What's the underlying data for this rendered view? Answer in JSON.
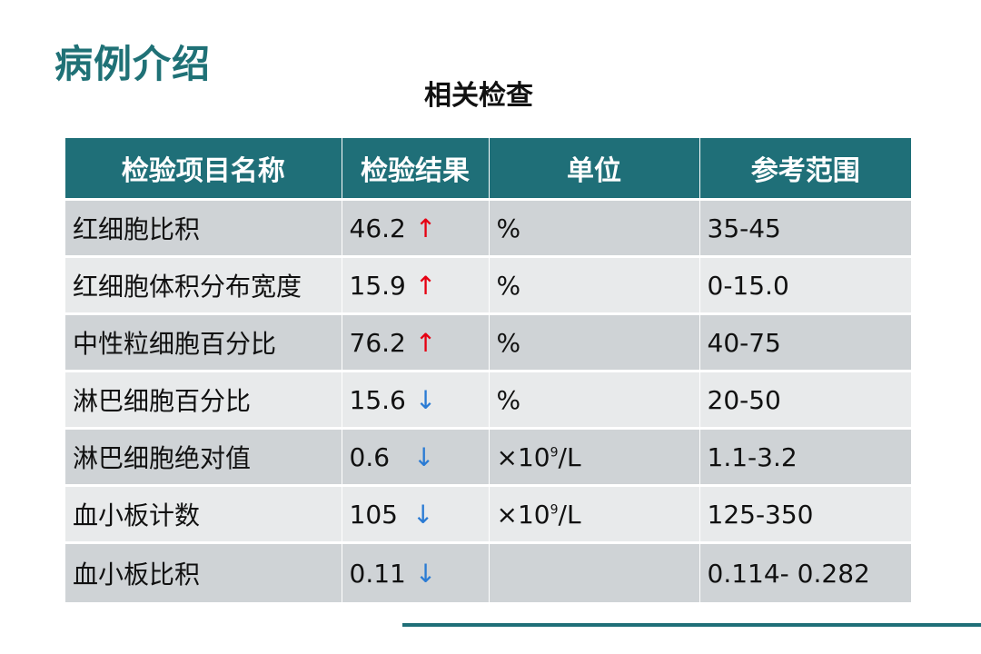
{
  "slide": {
    "title": "病例介绍",
    "caption": "相关检查"
  },
  "table": {
    "headers": [
      "检验项目名称",
      "检验结果",
      "单位",
      "参考范围"
    ],
    "rows": [
      {
        "name": "红细胞比积",
        "result": "46.2",
        "flag": "↑",
        "flag_dir": "up",
        "unit_base": "%",
        "unit_sup": "",
        "unit_tail": "",
        "range": "35-45"
      },
      {
        "name": "红细胞体积分布宽度",
        "result": "15.9",
        "flag": "↑",
        "flag_dir": "up",
        "unit_base": "%",
        "unit_sup": "",
        "unit_tail": "",
        "range": "0-15.0"
      },
      {
        "name": "中性粒细胞百分比",
        "result": "76.2",
        "flag": "↑",
        "flag_dir": "up",
        "unit_base": "%",
        "unit_sup": "",
        "unit_tail": "",
        "range": "40-75"
      },
      {
        "name": "淋巴细胞百分比",
        "result": "15.6",
        "flag": "↓",
        "flag_dir": "down",
        "unit_base": "%",
        "unit_sup": "",
        "unit_tail": "",
        "range": "20-50"
      },
      {
        "name": "淋巴细胞绝对值",
        "result": "0.6",
        "flag": "↓",
        "flag_dir": "down",
        "unit_base": "×10",
        "unit_sup": "9",
        "unit_tail": "/L",
        "range": "1.1-3.2"
      },
      {
        "name": "血小板计数",
        "result": "105",
        "flag": "↓",
        "flag_dir": "down",
        "unit_base": "×10",
        "unit_sup": "9",
        "unit_tail": "/L",
        "range": "125-350"
      },
      {
        "name": "血小板比积",
        "result": "0.11",
        "flag": "↓",
        "flag_dir": "down",
        "unit_base": "",
        "unit_sup": "",
        "unit_tail": "",
        "range": "0.114- 0.282"
      }
    ]
  },
  "colors": {
    "title": "#1f7176",
    "header_bg": "#1f6f78",
    "row_dark": "#cfd3d6",
    "row_light": "#e8eaeb",
    "arrow_up": "#e60012",
    "arrow_down": "#2a7bd4"
  }
}
